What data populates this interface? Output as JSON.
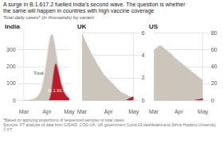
{
  "title": [
    "A surge in B.1.617.2 fuelled India’s second wave. The question is whether",
    "the same will happen in countries with high vaccine coverage"
  ],
  "subtitle": "Total daily cases* (in thousands) by variant",
  "chart_data": [
    {
      "type": "area",
      "title": "India",
      "categories": [
        "Mar",
        null,
        null,
        null,
        null,
        null,
        null,
        null,
        null,
        null,
        null,
        null,
        null,
        null,
        null,
        null,
        null,
        null,
        null,
        null,
        null,
        null,
        null,
        null,
        "Apr",
        null,
        null,
        null,
        null,
        null,
        null,
        null,
        null,
        null,
        null,
        null,
        null,
        null,
        null,
        null,
        null,
        null,
        null,
        null,
        null,
        null,
        null,
        "May"
      ],
      "series": [
        {
          "color": "#ccc5bc",
          "values": [
            2,
            2,
            2,
            3,
            3,
            4,
            5,
            6,
            7,
            8,
            10,
            13,
            16,
            20,
            25,
            32,
            40,
            52,
            68,
            90,
            115,
            145,
            180,
            220,
            265,
            305,
            345,
            375,
            390,
            395,
            385,
            365,
            335,
            300,
            262,
            225,
            190,
            158,
            130,
            108,
            88,
            72,
            58,
            48,
            39,
            32,
            26,
            21
          ]
        },
        {
          "color": "#bb1a2a",
          "values": [
            0,
            0,
            0,
            0,
            0,
            0,
            0,
            0,
            0,
            0,
            0,
            0,
            0,
            0,
            0,
            0,
            0,
            0,
            0,
            0,
            0,
            0,
            0,
            0,
            0,
            0,
            5,
            18,
            40,
            80,
            130,
            175,
            210,
            220,
            210,
            190,
            165,
            138,
            112,
            90,
            72,
            57,
            44,
            35,
            27,
            21,
            16,
            12
          ]
        }
      ],
      "ylim": [
        0,
        400
      ],
      "yticks": [
        0,
        100,
        200,
        300
      ],
      "grid": true,
      "annotations": [
        {
          "text": "Total",
          "x": 15.36,
          "y": 160,
          "color": "#555555"
        },
        {
          "text": "B.1.617.2",
          "x": 36,
          "y": 60,
          "color": "#ffffff"
        }
      ]
    },
    {
      "type": "area",
      "title": "UK",
      "categories": [
        "Mar",
        null,
        null,
        null,
        null,
        null,
        null,
        null,
        null,
        null,
        null,
        null,
        null,
        null,
        null,
        null,
        null,
        null,
        null,
        null,
        null,
        null,
        null,
        null,
        "Apr",
        null,
        null,
        null,
        null,
        null,
        null,
        null,
        null,
        null,
        null,
        null,
        null,
        null,
        null,
        null,
        null,
        null,
        null,
        null,
        null,
        null,
        null,
        "May"
      ],
      "series": [
        {
          "color": "#ccc5bc",
          "values": [
            6.0,
            5.8,
            5.5,
            5.3,
            5.1,
            4.9,
            4.7,
            4.5,
            4.3,
            4.1,
            3.9,
            3.8,
            3.6,
            3.4,
            3.2,
            3.1,
            2.9,
            2.8,
            2.6,
            2.5,
            2.3,
            2.2,
            2.1,
            2.0,
            1.9,
            1.8,
            1.7,
            1.6,
            1.5,
            1.4,
            1.3,
            1.2,
            1.1,
            1.0,
            0.9,
            0.8,
            0.75,
            0.7,
            0.65,
            0.6,
            0.55,
            0.5,
            0.45,
            0.4,
            0.35,
            0.3,
            0.25,
            0.2
          ]
        },
        {
          "color": "#bb1a2a",
          "values": [
            0,
            0,
            0,
            0,
            0,
            0,
            0,
            0,
            0,
            0,
            0,
            0,
            0,
            0,
            0,
            0,
            0,
            0,
            0,
            0,
            0,
            0,
            0,
            0,
            0,
            0,
            0,
            0,
            0,
            0,
            0,
            0,
            0,
            0,
            0,
            0,
            0,
            0,
            0,
            0,
            0.05,
            0.1,
            0.15,
            0.2,
            0.25,
            0.3,
            0.35,
            0.4
          ]
        }
      ],
      "ylim": [
        0,
        6
      ],
      "yticks": [
        0,
        2,
        4,
        6
      ],
      "grid": true
    },
    {
      "type": "area",
      "title": "US",
      "categories": [
        "Mar",
        null,
        null,
        null,
        null,
        null,
        null,
        null,
        null,
        null,
        null,
        null,
        null,
        null,
        null,
        null,
        null,
        null,
        null,
        null,
        null,
        null,
        null,
        null,
        "Apr",
        null,
        null,
        null,
        null,
        null,
        null,
        null,
        null,
        null,
        null,
        null,
        null,
        null,
        null,
        null,
        null,
        null,
        null,
        null,
        null,
        null,
        null,
        "May"
      ],
      "series": [
        {
          "color": "#ccc5bc",
          "values": [
            60,
            61,
            62,
            63,
            64,
            65,
            65,
            65,
            64,
            63,
            62,
            61,
            60,
            59,
            58,
            57,
            56,
            55,
            54,
            52,
            51,
            50,
            49,
            48,
            47,
            46,
            45,
            44,
            43,
            42,
            41,
            40,
            39,
            38,
            37,
            36,
            35,
            34,
            33,
            32,
            31,
            30,
            29,
            28,
            27,
            26,
            25,
            24
          ]
        },
        {
          "color": "#bb1a2a",
          "values": [
            0,
            0,
            0,
            0,
            0,
            0,
            0,
            0,
            0,
            0,
            0,
            0,
            0,
            0,
            0,
            0,
            0,
            0,
            0,
            0,
            0,
            0,
            0,
            0,
            0,
            0,
            0,
            0,
            0,
            0,
            0,
            0,
            0,
            0,
            0,
            0,
            0,
            0,
            0,
            0.5,
            1,
            1,
            1.5,
            1.5,
            2,
            2,
            2.5,
            3
          ]
        }
      ],
      "ylim": [
        0,
        80
      ],
      "yticks": [
        0,
        20,
        40,
        60,
        80
      ],
      "grid": true
    }
  ],
  "footnote": "*Based on applying proportions of sequenced samples to total cases",
  "source": "Sources: FT analysis of data from GISAID, COG-UK, UK government Covid-19 dashboard and Johns Hopkins University",
  "credit": "© FT"
}
